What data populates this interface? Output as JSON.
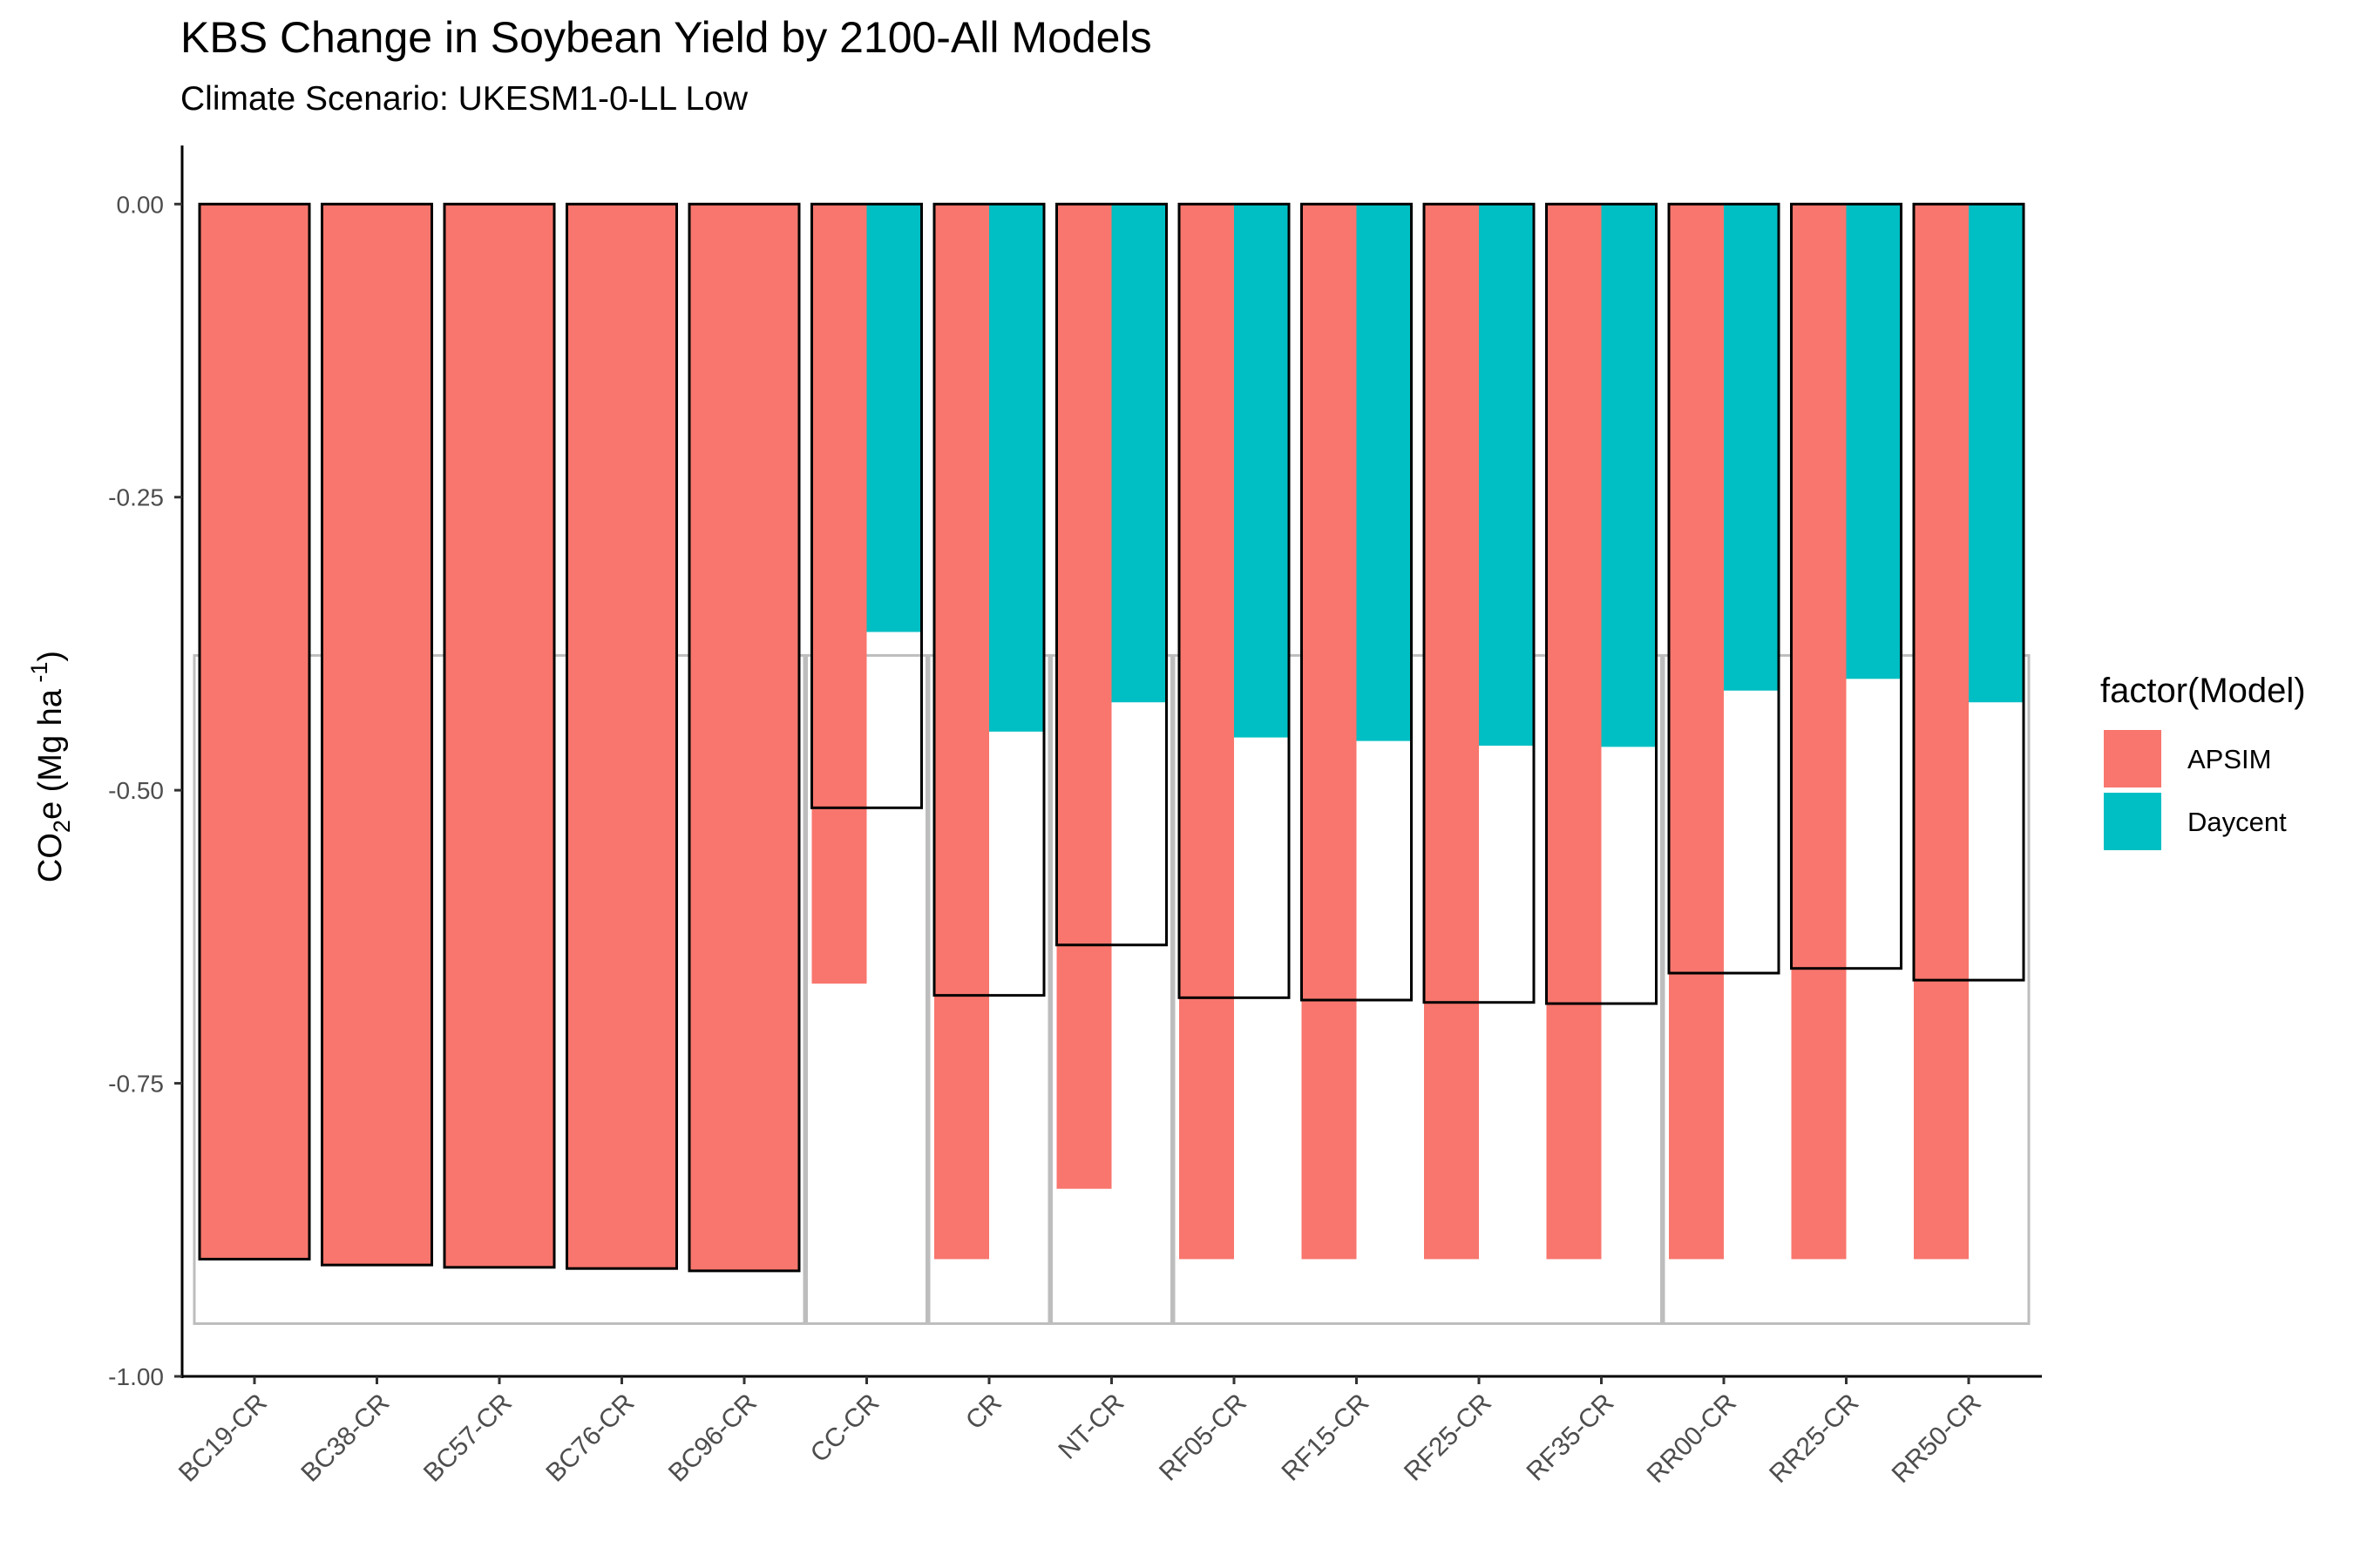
{
  "chart_data": {
    "type": "bar",
    "title": "KBS Change in Soybean Yield by 2100-All Models",
    "subtitle": "Climate Scenario: UKESM1-0-LL Low",
    "ylabel": {
      "prefix": "CO",
      "sub": "2",
      "mid": "e (Mg ha",
      "sup": " -1",
      "suffix": ")"
    },
    "ylim": [
      -1.0,
      0.05
    ],
    "yticks": [
      0.0,
      -0.25,
      -0.5,
      -0.75,
      -1.0
    ],
    "ytick_labels": [
      "0.00",
      "-0.25",
      "-0.50",
      "-0.75",
      "-1.00"
    ],
    "categories": [
      "BC19-CR",
      "BC38-CR",
      "BC57-CR",
      "BC76-CR",
      "BC96-CR",
      "CC-CR",
      "CR",
      "NT-CR",
      "RF05-CR",
      "RF15-CR",
      "RF25-CR",
      "RF35-CR",
      "RR00-CR",
      "RR25-CR",
      "RR50-CR"
    ],
    "series": [
      {
        "name": "APSIM",
        "color": "#F8766D",
        "values": [
          -0.9,
          -0.905,
          -0.907,
          -0.908,
          -0.91,
          -0.665,
          -0.9,
          -0.84,
          -0.9,
          -0.9,
          -0.9,
          -0.9,
          -0.9,
          -0.9,
          -0.9
        ]
      },
      {
        "name": "Daycent",
        "color": "#00BFC4",
        "values": [
          null,
          null,
          null,
          null,
          null,
          -0.365,
          -0.45,
          -0.425,
          -0.455,
          -0.458,
          -0.462,
          -0.463,
          -0.415,
          -0.405,
          -0.425
        ]
      }
    ],
    "mean_values": [
      -0.9,
      -0.905,
      -0.907,
      -0.908,
      -0.91,
      -0.515,
      -0.675,
      -0.632,
      -0.677,
      -0.679,
      -0.681,
      -0.682,
      -0.656,
      -0.652,
      -0.662
    ],
    "group_boxes": [
      {
        "from": 0,
        "to": 4,
        "top": -0.385,
        "bottom": -0.955
      },
      {
        "from": 5,
        "to": 5,
        "top": -0.385,
        "bottom": -0.955
      },
      {
        "from": 6,
        "to": 6,
        "top": -0.385,
        "bottom": -0.955
      },
      {
        "from": 7,
        "to": 7,
        "top": -0.385,
        "bottom": -0.955
      },
      {
        "from": 8,
        "to": 11,
        "top": -0.385,
        "bottom": -0.955
      },
      {
        "from": 12,
        "to": 14,
        "top": -0.385,
        "bottom": -0.955
      }
    ],
    "legend": {
      "title": "factor(Model)",
      "position": "right"
    },
    "grid": false
  }
}
